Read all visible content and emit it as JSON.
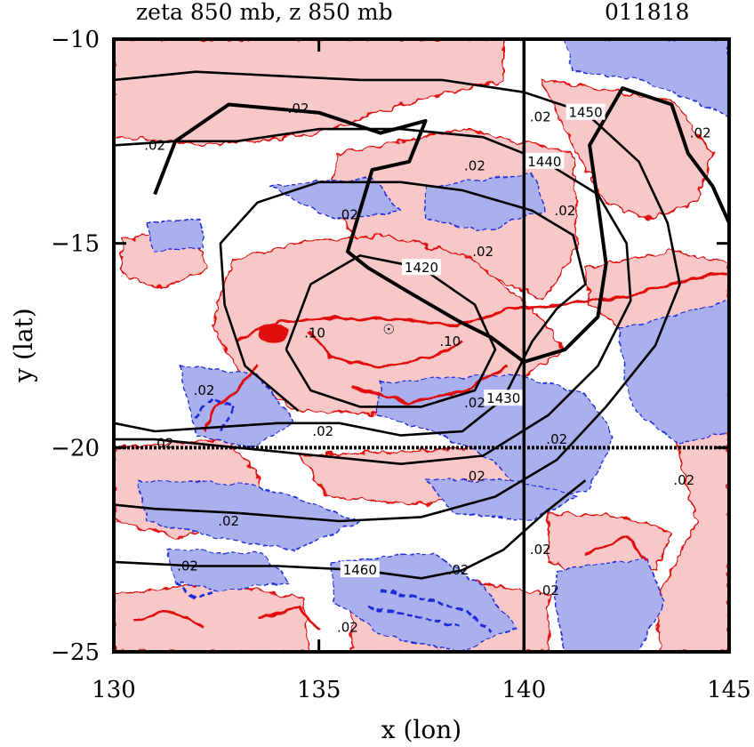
{
  "colors": {
    "positive_fill": "#f8c8c8",
    "negative_fill": "#aab0ee",
    "positive_line": "#e01010",
    "negative_line": "#1a2ad8",
    "height_line": "#000000"
  },
  "chart_data": {
    "type": "contour",
    "title": "zeta 850 mb, z 850 mb",
    "date_label": "011818",
    "xlabel": "x (lon)",
    "ylabel": "y (lat)",
    "xlim": [
      130,
      145
    ],
    "ylim": [
      -25,
      -10
    ],
    "x_ticks": [
      {
        "value": 130,
        "label": "130"
      },
      {
        "value": 135,
        "label": "135"
      },
      {
        "value": 140,
        "label": "140"
      },
      {
        "value": 145,
        "label": "145"
      }
    ],
    "y_ticks": [
      {
        "value": -10,
        "label": "−10"
      },
      {
        "value": -15,
        "label": "−15"
      },
      {
        "value": -20,
        "label": "−20"
      },
      {
        "value": -25,
        "label": "−25"
      }
    ],
    "cross_section_lines": {
      "lon": 140,
      "lat": -20
    },
    "height_contours": [
      {
        "label": "1420",
        "points": [
          [
            134.2,
            -17.6
          ],
          [
            134.8,
            -16.0
          ],
          [
            136.0,
            -15.3
          ],
          [
            137.5,
            -15.6
          ],
          [
            138.8,
            -16.5
          ],
          [
            139.3,
            -17.6
          ],
          [
            138.8,
            -18.6
          ],
          [
            137.5,
            -19.0
          ],
          [
            136.0,
            -19.0
          ],
          [
            134.8,
            -18.6
          ],
          [
            134.2,
            -17.6
          ]
        ]
      },
      {
        "label": "1430",
        "points": [
          [
            130.0,
            -19.4
          ],
          [
            131.0,
            -19.6
          ],
          [
            132.5,
            -19.5
          ],
          [
            134.0,
            -19.4
          ],
          [
            135.5,
            -19.4
          ],
          [
            137.0,
            -19.7
          ],
          [
            138.5,
            -19.6
          ],
          [
            139.5,
            -18.8
          ],
          [
            140.2,
            -17.4
          ],
          [
            140.8,
            -16.6
          ],
          [
            141.5,
            -16.0
          ],
          [
            141.2,
            -14.8
          ],
          [
            140.2,
            -14.2
          ],
          [
            138.5,
            -13.7
          ],
          [
            137.0,
            -13.5
          ],
          [
            135.0,
            -13.5
          ],
          [
            133.5,
            -14.0
          ],
          [
            132.6,
            -15.0
          ],
          [
            132.7,
            -16.5
          ],
          [
            133.2,
            -18.0
          ],
          [
            134.5,
            -19.1
          ]
        ]
      },
      {
        "label": "1440",
        "points": [
          [
            130.0,
            -12.6
          ],
          [
            131.5,
            -12.5
          ],
          [
            133.0,
            -12.5
          ],
          [
            135.0,
            -12.2
          ],
          [
            137.0,
            -12.2
          ],
          [
            139.0,
            -12.4
          ],
          [
            140.5,
            -13.0
          ],
          [
            141.8,
            -13.8
          ],
          [
            142.5,
            -15.0
          ],
          [
            142.6,
            -16.4
          ],
          [
            141.8,
            -18.0
          ],
          [
            140.6,
            -19.2
          ],
          [
            139.0,
            -20.2
          ],
          [
            137.0,
            -20.4
          ],
          [
            135.0,
            -20.2
          ],
          [
            133.0,
            -20.0
          ],
          [
            131.0,
            -19.8
          ],
          [
            130.0,
            -19.8
          ]
        ]
      },
      {
        "label": "1450",
        "points": [
          [
            130.0,
            -11.0
          ],
          [
            132.0,
            -10.8
          ],
          [
            134.0,
            -10.9
          ],
          [
            136.0,
            -11.0
          ],
          [
            138.0,
            -11.0
          ],
          [
            140.0,
            -11.3
          ],
          [
            141.5,
            -11.8
          ],
          [
            142.8,
            -13.0
          ],
          [
            143.5,
            -14.5
          ],
          [
            143.8,
            -16.0
          ],
          [
            143.2,
            -17.5
          ],
          [
            142.0,
            -19.0
          ],
          [
            140.8,
            -20.3
          ],
          [
            139.3,
            -21.2
          ],
          [
            137.5,
            -21.7
          ],
          [
            135.5,
            -21.8
          ],
          [
            133.0,
            -21.6
          ],
          [
            131.0,
            -21.5
          ],
          [
            130.0,
            -21.4
          ]
        ]
      },
      {
        "label": "1460",
        "points": [
          [
            130.0,
            -22.8
          ],
          [
            132.0,
            -22.9
          ],
          [
            134.0,
            -22.9
          ],
          [
            136.0,
            -23.0
          ],
          [
            137.5,
            -23.2
          ],
          [
            138.5,
            -23.0
          ],
          [
            139.5,
            -22.5
          ],
          [
            140.5,
            -21.6
          ],
          [
            141.5,
            -20.8
          ]
        ]
      }
    ],
    "vorticity_contour_labels": [
      {
        "text": ".02",
        "x": 134.5,
        "y": -11.7
      },
      {
        "text": ".02",
        "x": 131.0,
        "y": -12.6
      },
      {
        "text": ".02",
        "x": 140.4,
        "y": -11.9
      },
      {
        "text": ".02",
        "x": 138.8,
        "y": -13.1
      },
      {
        "text": ".02",
        "x": 135.7,
        "y": -14.3
      },
      {
        "text": ".02",
        "x": 139.0,
        "y": -15.2
      },
      {
        "text": ".02",
        "x": 141.0,
        "y": -14.2
      },
      {
        "text": ".02",
        "x": 144.3,
        "y": -12.3
      },
      {
        "text": ".10",
        "x": 134.9,
        "y": -17.2
      },
      {
        "text": ".10",
        "x": 138.2,
        "y": -17.4
      },
      {
        "text": ".02",
        "x": 138.8,
        "y": -18.9
      },
      {
        "text": ".02",
        "x": 132.2,
        "y": -18.6
      },
      {
        "text": ".02",
        "x": 131.2,
        "y": -19.9
      },
      {
        "text": ".02",
        "x": 135.1,
        "y": -19.6
      },
      {
        "text": ".02",
        "x": 138.8,
        "y": -20.7
      },
      {
        "text": ".02",
        "x": 140.8,
        "y": -19.8
      },
      {
        "text": ".02",
        "x": 143.9,
        "y": -20.8
      },
      {
        "text": ".02",
        "x": 132.8,
        "y": -21.8
      },
      {
        "text": ".02",
        "x": 140.4,
        "y": -22.5
      },
      {
        "text": ".02",
        "x": 138.4,
        "y": -23.0
      },
      {
        "text": ".02",
        "x": 140.6,
        "y": -23.5
      },
      {
        "text": ".02",
        "x": 131.8,
        "y": -22.9
      },
      {
        "text": ".02",
        "x": 135.7,
        "y": -24.4
      }
    ],
    "typhoon_symbol": {
      "x": 136.7,
      "y": -17.0
    }
  }
}
